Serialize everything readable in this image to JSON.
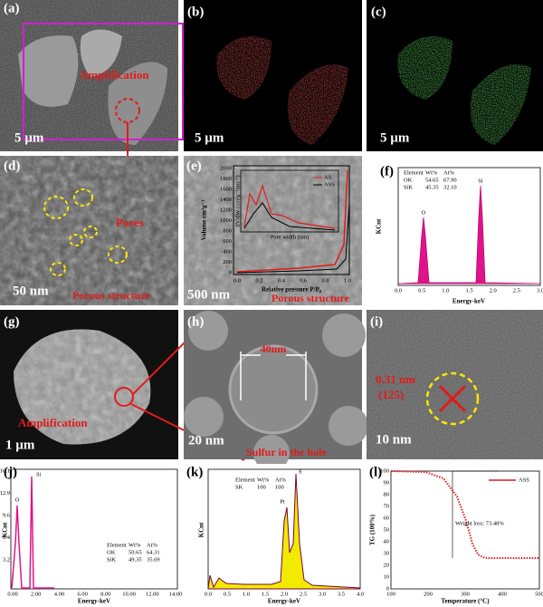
{
  "panels": {
    "a": {
      "label": "(a)",
      "scale_bar": "5 µm",
      "annotation": "Amplification"
    },
    "b": {
      "label": "(b)",
      "scale_bar": "5 µm"
    },
    "c": {
      "label": "(c)",
      "scale_bar": "5 µm"
    },
    "d": {
      "label": "(d)",
      "scale_bar": "50 nm",
      "annotation": "Pores",
      "caption": "Porous structure"
    },
    "e": {
      "label": "(e)",
      "scale_bar": "500 nm",
      "caption": "Porous structure",
      "y_label": "Volume cm³g⁻¹",
      "x_label": "Relative pressure P/P₀",
      "yticks": [
        "0",
        "200",
        "400",
        "600",
        "800",
        "1000",
        "1200",
        "1400",
        "1600",
        "1800",
        "2000"
      ],
      "xticks": [
        "0.0",
        "0.2",
        "0.4",
        "0.6",
        "0.8",
        "1.0"
      ],
      "legend": [
        "AS",
        "ASS"
      ],
      "inset_x_label": "Pore width (nm)",
      "inset_y_label": "dV/dW (cm³g⁻¹nm⁻¹)"
    },
    "f": {
      "label": "(f)",
      "y_label": "KCnt",
      "x_label": "Energy-keV",
      "xticks": [
        "0.0",
        "0.5",
        "1.0",
        "1.5",
        "2.0",
        "2.5",
        "3.0"
      ],
      "peaks": [
        "O",
        "Si"
      ],
      "table": {
        "header": [
          "Element",
          "Wt%",
          "At%"
        ],
        "rows": [
          [
            "OK",
            "54.65",
            "67.90"
          ],
          [
            "SiK",
            "45.35",
            "32.10"
          ]
        ]
      }
    },
    "g": {
      "label": "(g)",
      "scale_bar": "1 µm",
      "annotation": "Amplification"
    },
    "h": {
      "label": "(h)",
      "dimension": "40nm",
      "scale_bar": "20 nm",
      "caption": "Sulfur in  the hole"
    },
    "i": {
      "label": "(i)",
      "spacing": "0.31 nm",
      "plane": "(125)",
      "scale_bar": "10 nm"
    },
    "j": {
      "label": "(j)",
      "y_label": "KCnt",
      "x_label": "Energy-keV",
      "xticks": [
        "0.00",
        "2.00",
        "4.00",
        "6.00",
        "8.00",
        "10.00",
        "12.00",
        "14.00"
      ],
      "yticks": [
        "3.2",
        "6.4",
        "9.6",
        "12.9",
        "16.1"
      ],
      "peaks": [
        "O",
        "Si"
      ],
      "table": {
        "header": [
          "Element",
          "Wt%",
          "At%"
        ],
        "rows": [
          [
            "OK",
            "50.65",
            "64.31"
          ],
          [
            "SiK",
            "49.35",
            "35.69"
          ]
        ]
      }
    },
    "k": {
      "label": "(k)",
      "y_label": "KCnt",
      "x_label": "Energy-keV",
      "xticks": [
        "0.0",
        "0.5",
        "1.0",
        "1.5",
        "2.0",
        "2.5",
        "3.0",
        "3.5",
        "4.0"
      ],
      "peaks": [
        "Pt",
        "S"
      ],
      "table": {
        "header": [
          "Element",
          "Wt%",
          "At%"
        ],
        "rows": [
          [
            "SK",
            "100",
            "100"
          ]
        ]
      }
    },
    "l": {
      "label": "(l)",
      "y_label": "TG (100%)",
      "x_label": "Temperature (°C)",
      "xticks": [
        "100",
        "200",
        "300",
        "400",
        "500"
      ],
      "yticks": [
        "0",
        "10",
        "20",
        "30",
        "40",
        "50",
        "60",
        "70",
        "80",
        "90",
        "100"
      ],
      "legend": "ASS",
      "annotation": "Weight loss: 73.48%"
    }
  }
}
